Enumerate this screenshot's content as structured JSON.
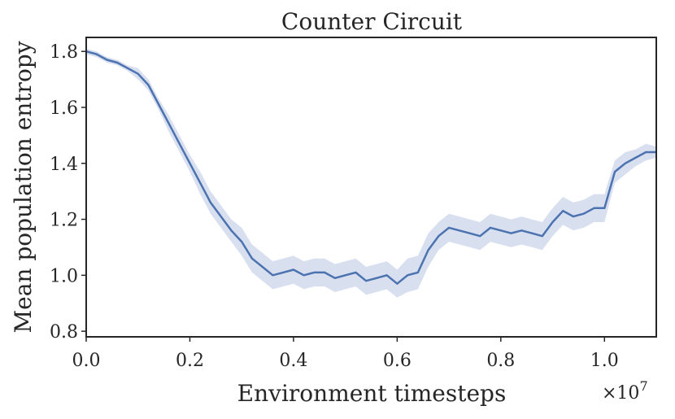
{
  "chart_data": {
    "type": "line",
    "title": "Counter Circuit",
    "xlabel": "Environment timesteps",
    "ylabel": "Mean population entropy",
    "x_multiplier_label": "×10",
    "x_multiplier_exponent": "7",
    "xlim": [
      0.0,
      1.1
    ],
    "ylim": [
      0.78,
      1.85
    ],
    "x_ticks": [
      0.0,
      0.2,
      0.4,
      0.6,
      0.8,
      1.0
    ],
    "x_tick_labels": [
      "0.0",
      "0.2",
      "0.4",
      "0.6",
      "0.8",
      "1.0"
    ],
    "y_ticks": [
      0.8,
      1.0,
      1.2,
      1.4,
      1.6,
      1.8
    ],
    "y_tick_labels": [
      "0.8",
      "1.0",
      "1.2",
      "1.4",
      "1.6",
      "1.8"
    ],
    "grid": false,
    "line_color": "#4c72b0",
    "band_color": "#c8d3ea",
    "series": [
      {
        "x": [
          0.0,
          0.02,
          0.04,
          0.06,
          0.08,
          0.1,
          0.12,
          0.14,
          0.16,
          0.18,
          0.2,
          0.22,
          0.24,
          0.26,
          0.28,
          0.3,
          0.32,
          0.34,
          0.36,
          0.38,
          0.4,
          0.42,
          0.44,
          0.46,
          0.48,
          0.5,
          0.52,
          0.54,
          0.56,
          0.58,
          0.6,
          0.62,
          0.64,
          0.66,
          0.68,
          0.7,
          0.72,
          0.74,
          0.76,
          0.78,
          0.8,
          0.82,
          0.84,
          0.86,
          0.88,
          0.9,
          0.92,
          0.94,
          0.96,
          0.98,
          1.0,
          1.02,
          1.04,
          1.06,
          1.08,
          1.1
        ],
        "y": [
          1.8,
          1.79,
          1.77,
          1.76,
          1.74,
          1.72,
          1.68,
          1.61,
          1.54,
          1.47,
          1.4,
          1.33,
          1.26,
          1.21,
          1.16,
          1.12,
          1.06,
          1.03,
          1.0,
          1.01,
          1.02,
          1.0,
          1.01,
          1.01,
          0.99,
          1.0,
          1.01,
          0.98,
          0.99,
          1.0,
          0.97,
          1.0,
          1.01,
          1.09,
          1.14,
          1.17,
          1.16,
          1.15,
          1.14,
          1.17,
          1.16,
          1.15,
          1.16,
          1.15,
          1.14,
          1.19,
          1.23,
          1.21,
          1.22,
          1.24,
          1.24,
          1.37,
          1.4,
          1.42,
          1.44,
          1.44
        ],
        "lower": [
          1.79,
          1.78,
          1.76,
          1.75,
          1.73,
          1.7,
          1.66,
          1.59,
          1.51,
          1.44,
          1.37,
          1.29,
          1.22,
          1.17,
          1.12,
          1.07,
          1.01,
          0.98,
          0.95,
          0.96,
          0.97,
          0.95,
          0.96,
          0.96,
          0.94,
          0.95,
          0.96,
          0.93,
          0.94,
          0.95,
          0.92,
          0.94,
          0.95,
          1.03,
          1.09,
          1.12,
          1.11,
          1.1,
          1.09,
          1.12,
          1.11,
          1.1,
          1.11,
          1.1,
          1.09,
          1.14,
          1.18,
          1.16,
          1.17,
          1.19,
          1.19,
          1.33,
          1.36,
          1.39,
          1.41,
          1.42
        ],
        "upper": [
          1.81,
          1.8,
          1.78,
          1.77,
          1.75,
          1.74,
          1.7,
          1.63,
          1.57,
          1.5,
          1.43,
          1.37,
          1.3,
          1.25,
          1.2,
          1.17,
          1.11,
          1.08,
          1.05,
          1.06,
          1.07,
          1.05,
          1.06,
          1.06,
          1.04,
          1.05,
          1.06,
          1.03,
          1.04,
          1.05,
          1.02,
          1.06,
          1.07,
          1.15,
          1.19,
          1.22,
          1.21,
          1.2,
          1.19,
          1.22,
          1.21,
          1.2,
          1.21,
          1.2,
          1.19,
          1.24,
          1.28,
          1.26,
          1.27,
          1.29,
          1.29,
          1.41,
          1.44,
          1.45,
          1.47,
          1.46
        ]
      }
    ]
  }
}
